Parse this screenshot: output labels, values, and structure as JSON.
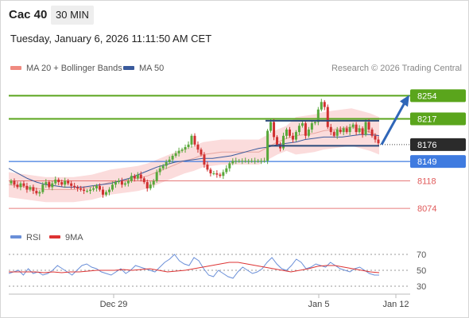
{
  "header": {
    "instrument": "Cac 40",
    "timeframe": "30 MIN",
    "datetime": "Tuesday, January 6, 2026 11:11:50 AM CET"
  },
  "legend": {
    "ma20": "MA 20 + Bollinger Bands",
    "ma50": "MA 50",
    "credit": "Research © 2026 Trading Central",
    "rsi": "RSI",
    "rsi_ma": "9MA"
  },
  "colors": {
    "ma20_swatch": "#f08a80",
    "ma50": "#3a5a9c",
    "resistance": "#5aa51c",
    "pivot": "#3f7be0",
    "support": "#e05a5a",
    "last": "#2b2b2b",
    "candle_up": "#58a83a",
    "candle_down": "#d03030",
    "band": "#fbdcdc",
    "arrow": "#2f66b8",
    "rsi": "#6a8fd8",
    "rsi_ma": "#dd3333"
  },
  "chart_data": [
    {
      "type": "candlestick",
      "title": "Cac 40",
      "timeframe": "30 MIN",
      "x_tick_labels": [
        "Dec 29",
        "Jan 5",
        "Jan 12"
      ],
      "ylim": [
        8045,
        8285
      ],
      "levels": [
        {
          "label": "8254",
          "value": 8254,
          "role": "resistance",
          "color": "#5aa51c"
        },
        {
          "label": "8217",
          "value": 8217,
          "role": "resistance",
          "color": "#5aa51c"
        },
        {
          "label": "8176",
          "value": 8176,
          "role": "last",
          "color": "#2b2b2b"
        },
        {
          "label": "8149",
          "value": 8149,
          "role": "pivot",
          "color": "#3f7be0"
        },
        {
          "label": "8118",
          "value": 8118,
          "role": "support",
          "color": "#e05a5a"
        },
        {
          "label": "8074",
          "value": 8074,
          "role": "support",
          "color": "#e05a5a"
        }
      ],
      "close_series_approx": [
        8118,
        8112,
        8108,
        8114,
        8110,
        8104,
        8108,
        8102,
        8098,
        8100,
        8112,
        8116,
        8108,
        8114,
        8120,
        8116,
        8112,
        8118,
        8114,
        8110,
        8108,
        8106,
        8104,
        8102,
        8102,
        8104,
        8106,
        8110,
        8104,
        8096,
        8100,
        8104,
        8112,
        8116,
        8118,
        8112,
        8114,
        8118,
        8126,
        8122,
        8128,
        8122,
        8116,
        8106,
        8112,
        8118,
        8132,
        8138,
        8142,
        8148,
        8152,
        8158,
        8162,
        8166,
        8168,
        8172,
        8176,
        8190,
        8176,
        8168,
        8160,
        8144,
        8136,
        8130,
        8130,
        8128,
        8126,
        8132,
        8138,
        8146,
        8150,
        8150,
        8150,
        8150,
        8150,
        8150,
        8150,
        8150,
        8150,
        8150,
        8150,
        8198,
        8212,
        8188,
        8176,
        8170,
        8190,
        8200,
        8190,
        8184,
        8196,
        8206,
        8210,
        8190,
        8200,
        8210,
        8212,
        8232,
        8244,
        8236,
        8204,
        8196,
        8190,
        8200,
        8196,
        8202,
        8196,
        8204,
        8208,
        8196,
        8202,
        8192,
        8212,
        8200,
        8190,
        8184,
        8178
      ],
      "ma20_approx": [
        8112,
        8110,
        8108,
        8106,
        8104,
        8104,
        8104,
        8104,
        8106,
        8108,
        8112,
        8116,
        8118,
        8120,
        8122,
        8126,
        8132,
        8138,
        8144,
        8150,
        8154,
        8160,
        8162,
        8164,
        8164,
        8164,
        8164,
        8164,
        8172,
        8180,
        8186,
        8190,
        8192,
        8194,
        8198,
        8200,
        8202,
        8204,
        8200,
        8196,
        8190
      ],
      "ma50_approx": [
        8138,
        8130,
        8122,
        8116,
        8112,
        8110,
        8108,
        8108,
        8108,
        8110,
        8112,
        8114,
        8118,
        8122,
        8128,
        8134,
        8140,
        8144,
        8148,
        8150,
        8152,
        8154,
        8154,
        8156,
        8158,
        8162,
        8166,
        8170,
        8172,
        8176,
        8178,
        8180,
        8184,
        8186,
        8188,
        8188,
        8188,
        8190,
        8192,
        8192,
        8190
      ],
      "forecast_arrow": {
        "from": 8176,
        "to": 8254
      }
    },
    {
      "type": "line",
      "title": "RSI",
      "series": [
        {
          "name": "RSI",
          "values_approx": [
            46,
            48,
            50,
            44,
            52,
            46,
            48,
            44,
            46,
            50,
            56,
            52,
            48,
            44,
            50,
            56,
            58,
            54,
            52,
            48,
            46,
            44,
            48,
            52,
            46,
            50,
            56,
            54,
            52,
            50,
            48,
            54,
            60,
            64,
            70,
            62,
            58,
            56,
            66,
            62,
            52,
            44,
            42,
            50,
            46,
            42,
            40,
            48,
            54,
            50,
            46,
            48,
            52,
            60,
            66,
            58,
            52,
            50,
            56,
            64,
            60,
            52,
            54,
            58,
            56,
            54,
            60,
            56,
            52,
            50,
            48,
            52,
            54,
            50,
            46,
            44,
            44
          ]
        },
        {
          "name": "9MA",
          "values_approx": [
            48,
            48,
            48,
            48,
            47,
            48,
            47,
            48,
            48,
            49,
            50,
            50,
            50,
            51,
            50,
            51,
            52,
            50,
            48,
            49,
            50,
            52,
            54,
            56,
            58,
            60,
            60,
            58,
            56,
            54,
            52,
            50,
            48,
            50,
            52,
            55,
            56,
            56,
            54,
            52,
            50,
            48,
            47
          ]
        }
      ],
      "y_tick_labels": [
        "70",
        "50",
        "30"
      ],
      "ylim": [
        25,
        80
      ]
    }
  ]
}
